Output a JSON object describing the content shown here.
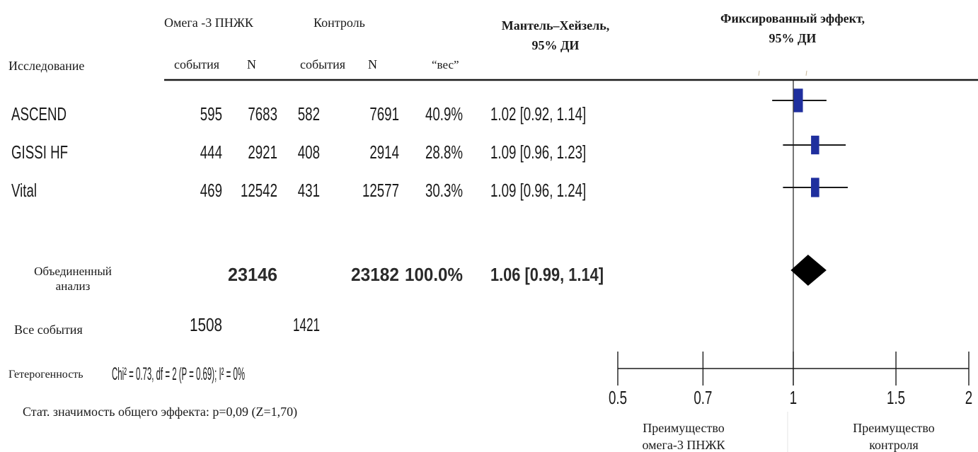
{
  "chart_data": {
    "type": "forest",
    "headers": {
      "study": "Исследование",
      "group_treatment": "Омега -3 ПНЖК",
      "group_control": "Контроль",
      "events": "события",
      "n": "N",
      "weight": "“вес”",
      "ci_line1": "Мантель–Хейзель,",
      "ci_line2": "95% ДИ",
      "plot_line1": "Фиксированный эффект,",
      "plot_line2": "95% ДИ"
    },
    "studies": [
      {
        "name": "ASCEND",
        "t_events": "595",
        "t_n": "7683",
        "c_events": "582",
        "c_n": "7691",
        "weight": "40.9%",
        "ci_text": "1.02 [0.92, 1.14]",
        "est": 1.02,
        "lo": 0.92,
        "hi": 1.14,
        "w": 40.9
      },
      {
        "name": "GISSI HF",
        "t_events": "444",
        "t_n": "2921",
        "c_events": "408",
        "c_n": "2914",
        "weight": "28.8%",
        "ci_text": "1.09 [0.96, 1.23]",
        "est": 1.09,
        "lo": 0.96,
        "hi": 1.23,
        "w": 28.8
      },
      {
        "name": "Vital",
        "t_events": "469",
        "t_n": "12542",
        "c_events": "431",
        "c_n": "12577",
        "weight": "30.3%",
        "ci_text": "1.09 [0.96, 1.24]",
        "est": 1.09,
        "lo": 0.96,
        "hi": 1.24,
        "w": 30.3
      }
    ],
    "pooled": {
      "label_line1": "Объединенный",
      "label_line2": "анализ",
      "t_n": "23146",
      "c_n": "23182",
      "weight": "100.0%",
      "ci_text": "1.06 [0.99, 1.14]",
      "est": 1.06,
      "lo": 0.99,
      "hi": 1.14
    },
    "total_events": {
      "label": "Все события",
      "t": "1508",
      "c": "1421"
    },
    "heterogeneity": {
      "label": "Гетерогенность",
      "text": "Chi² = 0.73, df = 2 (P = 0.69); I² = 0%"
    },
    "overall_effect": "Стат. значимость общего эффекта: p=0,09 (Z=1,70)",
    "axis": {
      "scale": "log",
      "ticks": [
        0.5,
        0.7,
        1,
        1.5,
        2
      ],
      "tick_labels": [
        "0.5",
        "0.7",
        "1",
        "1.5",
        "2"
      ],
      "range": [
        0.5,
        2
      ]
    },
    "favours": {
      "left_line1": "Преимущество",
      "left_line2": "омега-3 ПНЖК",
      "right_line1": "Преимущество",
      "right_line2": "контроля"
    },
    "colors": {
      "marker": "#1f2f9e",
      "pooled": "#000000",
      "text": "#1a1a1a"
    }
  }
}
